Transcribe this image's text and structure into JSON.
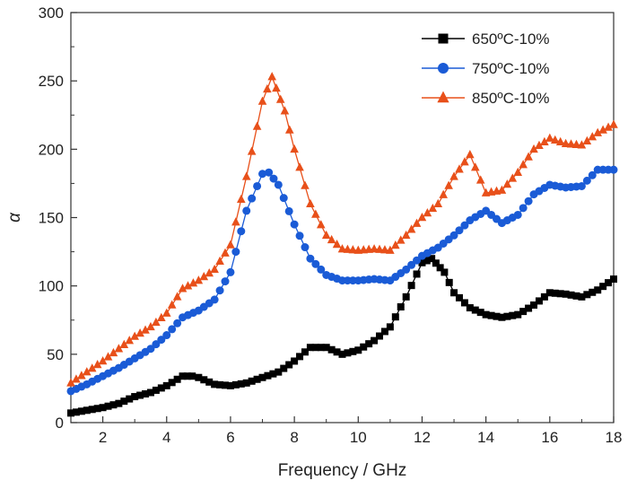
{
  "chart_data": {
    "type": "line",
    "xlabel": "Frequency / GHz",
    "ylabel": "α",
    "xlim": [
      1,
      18
    ],
    "ylim": [
      0,
      300
    ],
    "x_ticks": [
      "2",
      "4",
      "6",
      "8",
      "10",
      "12",
      "14",
      "16",
      "18"
    ],
    "y_ticks": [
      "0",
      "50",
      "100",
      "150",
      "200",
      "250",
      "300"
    ],
    "legend_position": "top-right",
    "grid": false,
    "series": [
      {
        "name": "650ºC-10%",
        "color": "#000000",
        "marker": "square",
        "points": [
          [
            1,
            7
          ],
          [
            1.5,
            9
          ],
          [
            2,
            11
          ],
          [
            2.5,
            14
          ],
          [
            3,
            19
          ],
          [
            3.5,
            22
          ],
          [
            4,
            27
          ],
          [
            4.5,
            34
          ],
          [
            4.8,
            34
          ],
          [
            5,
            33
          ],
          [
            5.5,
            28
          ],
          [
            6,
            27
          ],
          [
            6.5,
            29
          ],
          [
            7,
            33
          ],
          [
            7.5,
            37
          ],
          [
            8,
            45
          ],
          [
            8.5,
            55
          ],
          [
            9,
            55
          ],
          [
            9.5,
            50
          ],
          [
            10,
            53
          ],
          [
            10.5,
            60
          ],
          [
            11,
            70
          ],
          [
            11.5,
            92
          ],
          [
            12,
            117
          ],
          [
            12.3,
            120
          ],
          [
            12.7,
            110
          ],
          [
            13,
            95
          ],
          [
            13.5,
            84
          ],
          [
            14,
            79
          ],
          [
            14.5,
            77
          ],
          [
            15,
            79
          ],
          [
            15.5,
            86
          ],
          [
            16,
            95
          ],
          [
            16.5,
            94
          ],
          [
            17,
            92
          ],
          [
            17.5,
            97
          ],
          [
            18,
            105
          ]
        ]
      },
      {
        "name": "750ºC-10%",
        "color": "#1a5bd6",
        "marker": "circle",
        "points": [
          [
            1,
            23
          ],
          [
            1.5,
            28
          ],
          [
            2,
            34
          ],
          [
            2.5,
            40
          ],
          [
            3,
            47
          ],
          [
            3.5,
            54
          ],
          [
            4,
            64
          ],
          [
            4.5,
            77
          ],
          [
            5,
            82
          ],
          [
            5.5,
            90
          ],
          [
            6,
            110
          ],
          [
            6.5,
            155
          ],
          [
            7,
            182
          ],
          [
            7.2,
            183
          ],
          [
            7.5,
            174
          ],
          [
            8,
            145
          ],
          [
            8.5,
            120
          ],
          [
            9,
            108
          ],
          [
            9.5,
            104
          ],
          [
            10,
            104
          ],
          [
            10.5,
            105
          ],
          [
            11,
            104
          ],
          [
            11.5,
            112
          ],
          [
            12,
            122
          ],
          [
            12.5,
            128
          ],
          [
            13,
            137
          ],
          [
            13.5,
            148
          ],
          [
            14,
            155
          ],
          [
            14.5,
            146
          ],
          [
            15,
            152
          ],
          [
            15.5,
            167
          ],
          [
            16,
            174
          ],
          [
            16.5,
            172
          ],
          [
            17,
            173
          ],
          [
            17.5,
            185
          ],
          [
            18,
            185
          ]
        ]
      },
      {
        "name": "850ºC-10%",
        "color": "#e8501a",
        "marker": "triangle",
        "points": [
          [
            1,
            29
          ],
          [
            1.5,
            37
          ],
          [
            2,
            45
          ],
          [
            2.5,
            54
          ],
          [
            3,
            63
          ],
          [
            3.5,
            70
          ],
          [
            4,
            80
          ],
          [
            4.5,
            98
          ],
          [
            5,
            104
          ],
          [
            5.5,
            112
          ],
          [
            6,
            130
          ],
          [
            6.5,
            180
          ],
          [
            7,
            235
          ],
          [
            7.3,
            253
          ],
          [
            7.7,
            228
          ],
          [
            8,
            200
          ],
          [
            8.5,
            160
          ],
          [
            9,
            137
          ],
          [
            9.5,
            127
          ],
          [
            10,
            126
          ],
          [
            10.5,
            127
          ],
          [
            11,
            126
          ],
          [
            11.5,
            137
          ],
          [
            12,
            150
          ],
          [
            12.5,
            160
          ],
          [
            13,
            180
          ],
          [
            13.5,
            196
          ],
          [
            14,
            168
          ],
          [
            14.5,
            170
          ],
          [
            15,
            183
          ],
          [
            15.5,
            200
          ],
          [
            16,
            208
          ],
          [
            16.5,
            204
          ],
          [
            17,
            203
          ],
          [
            17.5,
            212
          ],
          [
            18,
            218
          ]
        ]
      }
    ]
  }
}
